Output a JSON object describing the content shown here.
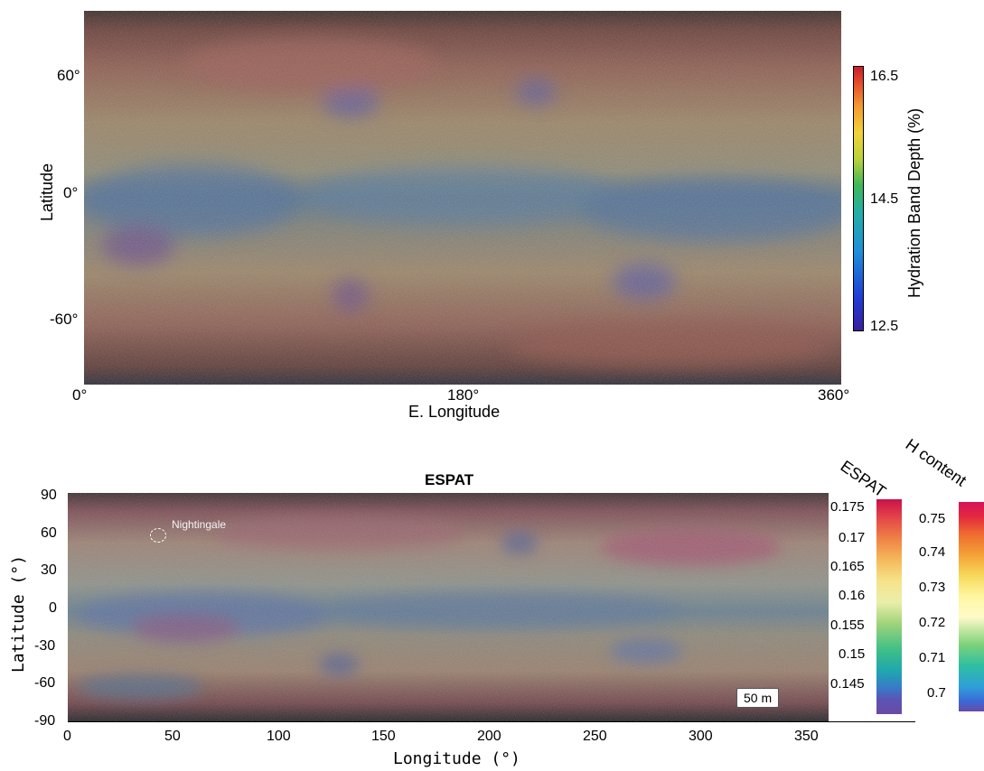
{
  "top_map": {
    "colorbar": {
      "label": "Hydration Band Depth (%)",
      "ticks": [
        "16.5",
        "14.5",
        "12.5"
      ],
      "min": 12.5,
      "max": 16.5,
      "colormap": "jet"
    },
    "y_ticks": [
      "60°",
      "0°",
      "-60°"
    ],
    "y_label": "Latitude",
    "x_ticks": [
      "0°",
      "180°",
      "360°"
    ],
    "x_label": "E. Longitude"
  },
  "bottom_map": {
    "title": "ESPAT",
    "y_label": "Latitude (°)",
    "y_ticks": [
      "90",
      "60",
      "30",
      "0",
      "-30",
      "-60",
      "-90"
    ],
    "x_label": "Longitude (°)",
    "x_ticks": [
      "0",
      "50",
      "100",
      "150",
      "200",
      "250",
      "300",
      "350"
    ],
    "feature_label": "Nightingale",
    "scale_bar": "50 m",
    "espat_colorbar": {
      "label": "ESPAT",
      "ticks": [
        "0.175",
        "0.17",
        "0.165",
        "0.16",
        "0.155",
        "0.15",
        "0.145"
      ]
    },
    "h_colorbar": {
      "label": "H content",
      "ticks": [
        "0.75",
        "0.74",
        "0.73",
        "0.72",
        "0.71",
        "0.7"
      ]
    }
  }
}
